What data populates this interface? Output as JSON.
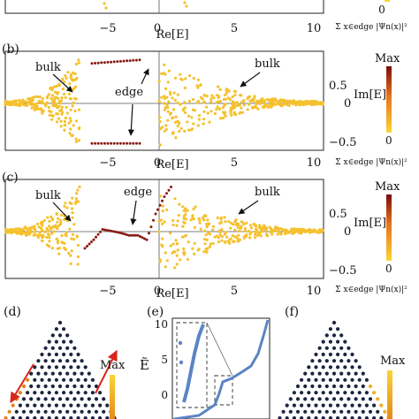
{
  "panels": [
    {
      "id": "a-partial",
      "label": "",
      "xticks": [
        "−5",
        "0",
        "5",
        "10"
      ],
      "xlabel": "Re[E]",
      "cbar_ticks": [
        "0"
      ],
      "cbar_label": "Σ x∈edge |Ψn(x)|²"
    },
    {
      "id": "b",
      "label": "(b)",
      "xticks": [
        "−5",
        "0",
        "5",
        "10"
      ],
      "yticks": [
        "0.5",
        "0",
        "−0.5"
      ],
      "xlabel": "Re[E]",
      "ylabel": "Im[E]",
      "cbar_max": "Max",
      "cbar_min": "0",
      "cbar_label": "Σ x∈edge |Ψn(x)|²",
      "annotations": [
        "bulk",
        "bulk",
        "edge"
      ]
    },
    {
      "id": "c",
      "label": "(c)",
      "xticks": [
        "−5",
        "0",
        "5",
        "10"
      ],
      "yticks": [
        "0.5",
        "0",
        "−0.5"
      ],
      "xlabel": "Re[E]",
      "ylabel": "Im[E]",
      "cbar_max": "Max",
      "cbar_min": "0",
      "cbar_label": "Σ x∈edge |Ψn(x)|²",
      "annotations": [
        "bulk",
        "edge",
        "bulk"
      ]
    }
  ],
  "bottom": {
    "d": {
      "label": "(d)",
      "cbar_max": "Max"
    },
    "e": {
      "label": "(e)",
      "ylabel": "Ẽ",
      "yticks": [
        "10",
        "5",
        "0"
      ]
    },
    "f": {
      "label": "(f)",
      "cbar_max": "Max"
    }
  },
  "colors": {
    "bulk": "#f5c12e",
    "edge": "#8b1a12",
    "cbar_top": "#7a0d0a",
    "cbar_mid": "#e8731d",
    "cbar_bottom": "#fbd535",
    "arrow_red": "#d9261c",
    "curve_blue": "#5b84c4",
    "lattice_dot": "#1c2440"
  },
  "chart_data": [
    {
      "type": "scatter",
      "panel": "b",
      "xlabel": "Re[E]",
      "ylabel": "Im[E]",
      "xlim": [
        -7.5,
        10.5
      ],
      "ylim": [
        -0.55,
        0.6
      ],
      "colorbar": {
        "label": "Σ x∈edge |Ψn(x)|²",
        "range": [
          "0",
          "Max"
        ]
      },
      "series": [
        {
          "role": "bulk",
          "color": "#f5c12e",
          "description_points": [
            [
              -7.5,
              0.0
            ],
            [
              -5,
              0.25
            ],
            [
              -3.5,
              0.5
            ],
            [
              -3,
              0
            ],
            [
              -3.5,
              -0.5
            ],
            [
              -5,
              -0.25
            ],
            [
              1,
              0.5
            ],
            [
              1.5,
              0
            ],
            [
              1,
              -0.5
            ],
            [
              3,
              0.35
            ],
            [
              5,
              0.1
            ],
            [
              8,
              0.02
            ],
            [
              10.5,
              0.0
            ]
          ]
        },
        {
          "role": "edge",
          "color": "#8b1a12",
          "upper_branch": {
            "x": [
              -2.5,
              0
            ],
            "y": 0.5
          },
          "lower_branch": {
            "x": [
              -2.5,
              0
            ],
            "y": -0.48
          }
        }
      ]
    },
    {
      "type": "scatter",
      "panel": "c",
      "xlabel": "Re[E]",
      "ylabel": "Im[E]",
      "xlim": [
        -7.5,
        10.5
      ],
      "ylim": [
        -0.55,
        0.6
      ],
      "colorbar": {
        "label": "Σ x∈edge |Ψn(x)|²",
        "range": [
          "0",
          "Max"
        ]
      },
      "series": [
        {
          "role": "bulk",
          "color": "#f5c12e"
        },
        {
          "role": "edge",
          "color": "#8b1a12",
          "points": [
            [
              -3,
              -0.2
            ],
            [
              -2.5,
              -0.1
            ],
            [
              -2,
              0.02
            ],
            [
              -1.5,
              0.0
            ],
            [
              -1,
              -0.02
            ],
            [
              -0.5,
              -0.05
            ],
            [
              0,
              -0.05
            ],
            [
              0.5,
              -0.1
            ],
            [
              1,
              0.2
            ],
            [
              1.5,
              0.4
            ],
            [
              2,
              0.55
            ]
          ]
        }
      ]
    },
    {
      "type": "line",
      "panel": "e",
      "ylabel": "Ẽ",
      "ylim": [
        -2,
        11
      ],
      "series": [
        {
          "role": "spectrum",
          "color": "#5b84c4"
        }
      ]
    }
  ]
}
